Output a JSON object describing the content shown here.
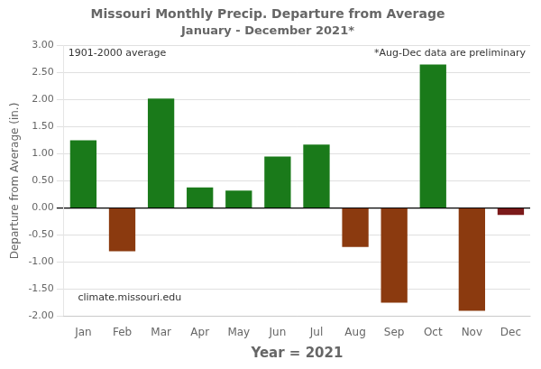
{
  "chart_data": {
    "type": "bar",
    "title": "Missouri Monthly Precip. Departure from Average",
    "subtitle": "January - December 2021*",
    "x_label": "Year = 2021",
    "y_label": "Departure from Average (in.)",
    "categories": [
      "Jan",
      "Feb",
      "Mar",
      "Apr",
      "May",
      "Jun",
      "Jul",
      "Aug",
      "Sep",
      "Oct",
      "Nov",
      "Dec"
    ],
    "values": [
      1.25,
      -0.8,
      2.02,
      0.38,
      0.32,
      0.95,
      1.17,
      -0.72,
      -1.75,
      2.65,
      -1.9,
      -0.13
    ],
    "colors": [
      "#1a7a1a",
      "#8B3A0F",
      "#1a7a1a",
      "#1a7a1a",
      "#1a7a1a",
      "#1a7a1a",
      "#1a7a1a",
      "#8B3A0F",
      "#8B3A0F",
      "#1a7a1a",
      "#8B3A0F",
      "#7B1A1A"
    ],
    "ylim": [
      -2.0,
      3.0
    ],
    "yticks": [
      {
        "value": -2.0,
        "label": "-2.00"
      },
      {
        "value": -1.5,
        "label": "-1.50"
      },
      {
        "value": -1.0,
        "label": "-1.00"
      },
      {
        "value": -0.5,
        "label": "-0.50"
      },
      {
        "value": 0.0,
        "label": "0.00"
      },
      {
        "value": 0.5,
        "label": "0.50"
      },
      {
        "value": 1.0,
        "label": "1.00"
      },
      {
        "value": 1.5,
        "label": "1.50"
      },
      {
        "value": 2.0,
        "label": "2.00"
      },
      {
        "value": 2.5,
        "label": "2.50"
      },
      {
        "value": 3.0,
        "label": "3.00"
      }
    ],
    "annotations": [
      "1901-2000 average",
      "*Aug-Dec data are preliminary",
      "climate.missouri.edu"
    ],
    "grid": true
  }
}
